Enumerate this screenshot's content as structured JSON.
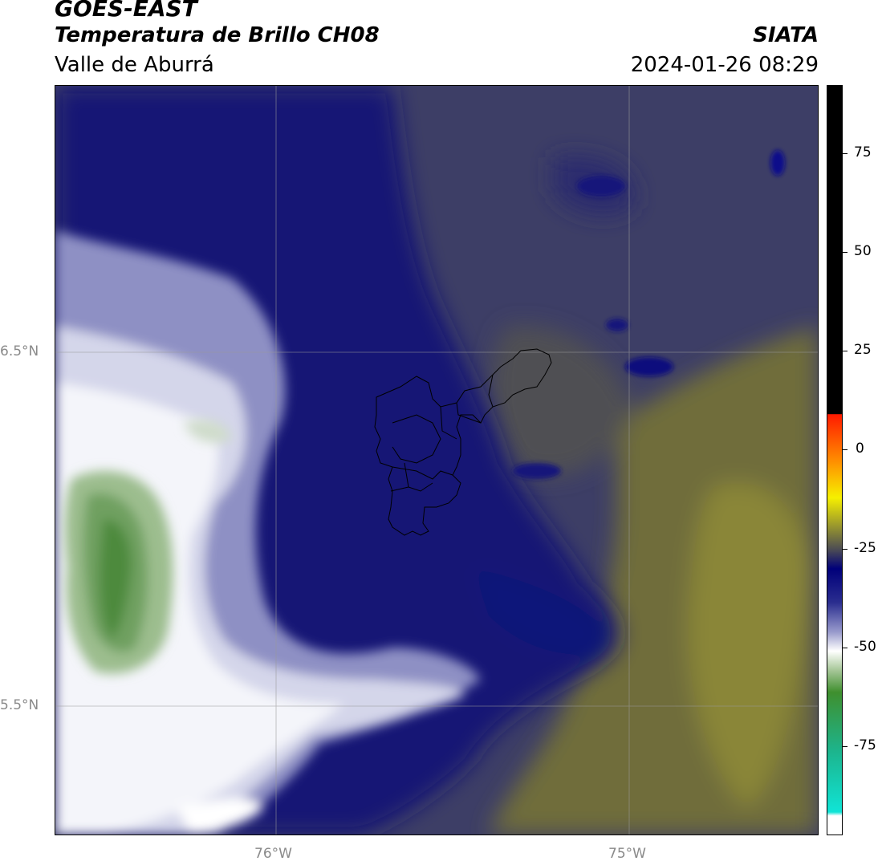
{
  "header": {
    "satellite": "GOES-EAST",
    "product": "Temperatura de Brillo CH08",
    "region": "Valle de Aburrá",
    "agency": "SIATA",
    "datetime": "2024-01-26 08:29"
  },
  "map": {
    "lat_labels": [
      "6.5°N",
      "5.5°N"
    ],
    "lon_labels": [
      "76°W",
      "75°W"
    ],
    "graticule": "on",
    "extent": {
      "lon_min": -76.62,
      "lon_max": -74.47,
      "lat_min": 5.09,
      "lat_max": 7.25
    }
  },
  "colorbar": {
    "ticks": [
      "75",
      "50",
      "25",
      "0",
      "-25",
      "-50",
      "-75"
    ],
    "range": [
      -95,
      92
    ],
    "palette": {
      "white": "#ffffff",
      "cyan": "#10e4d6",
      "green": "#3f8f2e",
      "navy": "#00007a",
      "olive": "#6f6d3a",
      "yellow": "#f6f000",
      "orange": "#ff8c00",
      "red": "#ff1a00",
      "black": "#000000"
    }
  },
  "colors": {
    "cold_cloud_tops": "#eef0f6",
    "deep_convection": "#6fa060",
    "mid_level": "#1c1f8a",
    "clear_dry": "#7b7a3c"
  }
}
